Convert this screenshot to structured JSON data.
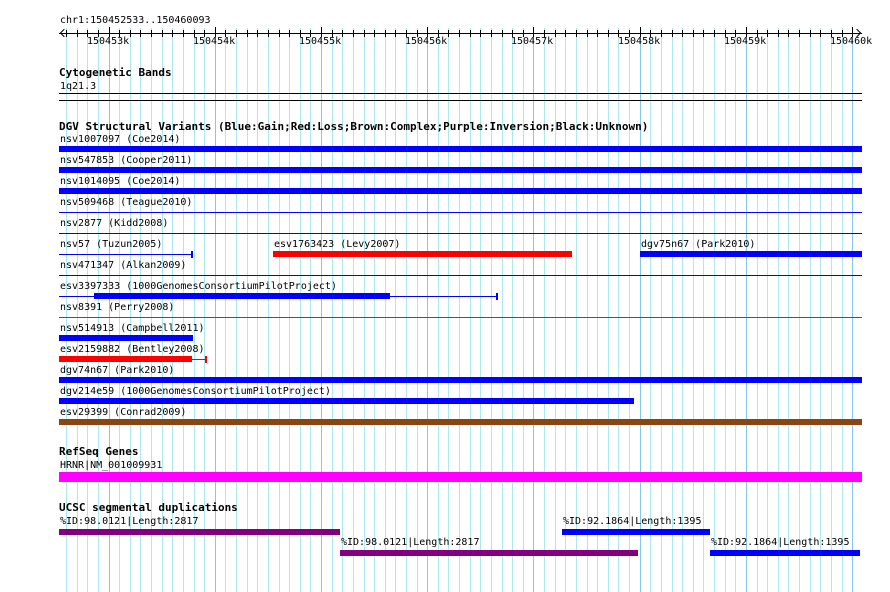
{
  "ruler": {
    "label": "chr1:150452533..150460093",
    "start": 150452533,
    "end": 150460093,
    "ticks": [
      "150453k",
      "150454k",
      "150455k",
      "150456k",
      "150457k",
      "150458k",
      "150459k",
      "150460k"
    ]
  },
  "cyto": {
    "title": "Cytogenetic Bands",
    "band": "1q21.3"
  },
  "dgv": {
    "title": "DGV Structural Variants (Blue:Gain;Red:Loss;Brown:Complex;Purple:Inversion;Black:Unknown)",
    "rows": [
      [
        {
          "label": "nsv1007097 (Coe2014)",
          "start": 150452533,
          "end": 150460093,
          "color": "#0000ff",
          "style": "thick"
        }
      ],
      [
        {
          "label": "nsv547853 (Cooper2011)",
          "start": 150452533,
          "end": 150460093,
          "color": "#0000ff",
          "style": "thick"
        }
      ],
      [
        {
          "label": "nsv1014095 (Coe2014)",
          "start": 150452533,
          "end": 150460093,
          "color": "#0000ff",
          "style": "thick"
        }
      ],
      [
        {
          "label": "nsv509468 (Teague2010)",
          "start": 150452533,
          "end": 150460093,
          "color": "#0000ff",
          "style": "thin"
        }
      ],
      [
        {
          "label": "nsv2877 (Kidd2008)",
          "start": 150452533,
          "end": 150460093,
          "color": "#0000ff",
          "style": "thin"
        }
      ],
      [
        {
          "label": "nsv57 (Tuzun2005)",
          "start": 150452533,
          "end": 150453785,
          "color": "#0000ff",
          "style": "thin",
          "endtick": true
        },
        {
          "label": "esv1763423 (Levy2007)",
          "start": 150454548,
          "end": 150457363,
          "color": "#ff0000",
          "style": "thick"
        },
        {
          "label": "dgv75n67 (Park2010)",
          "start": 150458003,
          "end": 150460093,
          "color": "#0000ff",
          "style": "thick"
        }
      ],
      [
        {
          "label": "nsv471347 (Alkan2009)",
          "start": 150452533,
          "end": 150460093,
          "color": "#0000ff",
          "style": "thin"
        }
      ],
      [
        {
          "label": "esv3397333 (1000GenomesConsortiumPilotProject)",
          "start": 150452533,
          "end": 150456657,
          "color": "#0000ff",
          "style": "thin",
          "endtick": true,
          "core_start": 150452863,
          "core_end": 150455649
        }
      ],
      [
        {
          "label": "nsv8391 (Perry2008)",
          "start": 150452533,
          "end": 150460093,
          "color": "#8b4513",
          "style": "thin"
        }
      ],
      [
        {
          "label": "nsv514913 (Campbell2011)",
          "start": 150452533,
          "end": 150453795,
          "color": "#0000ff",
          "style": "thick"
        }
      ],
      [
        {
          "label": "esv2159882 (Bentley2008)",
          "start": 150452533,
          "end": 150453917,
          "color": "#ff0000",
          "style": "thin",
          "endtick": true,
          "core_start": 150452533,
          "core_end": 150453785
        }
      ],
      [
        {
          "label": "dgv74n67 (Park2010)",
          "start": 150452533,
          "end": 150460093,
          "color": "#0000ff",
          "style": "thick"
        }
      ],
      [
        {
          "label": "dgv214e59 (1000GenomesConsortiumPilotProject)",
          "start": 150452533,
          "end": 150457946,
          "color": "#0000ff",
          "style": "thick"
        }
      ],
      [
        {
          "label": "esv29399 (Conrad2009)",
          "start": 150452533,
          "end": 150460093,
          "color": "#8b4513",
          "style": "thick"
        }
      ]
    ]
  },
  "refseq": {
    "title": "RefSeq Genes",
    "gene": {
      "label": "HRNR|NM_001009931",
      "start": 150452533,
      "end": 150460093,
      "color": "#ff00ff"
    }
  },
  "segdup": {
    "title": "UCSC segmental duplications",
    "rows": [
      [
        {
          "label": "%ID:98.0121|Length:2817",
          "start": 150452533,
          "end": 150455178,
          "color": "#800080"
        },
        {
          "label": "%ID:92.1864|Length:1395",
          "start": 150457268,
          "end": 150458662,
          "color": "#0000ff"
        }
      ],
      [
        {
          "label": "%ID:98.0121|Length:2817",
          "start": 150455178,
          "end": 150457984,
          "color": "#800080"
        },
        {
          "label": "%ID:92.1864|Length:1395",
          "start": 150458662,
          "end": 150460074,
          "color": "#0000ff"
        }
      ]
    ]
  }
}
